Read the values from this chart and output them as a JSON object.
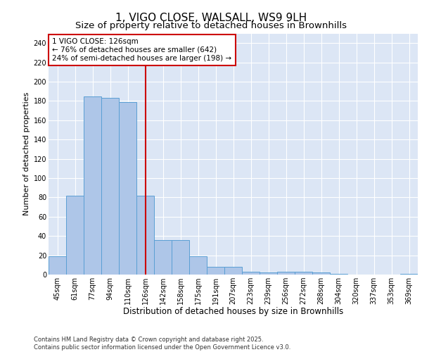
{
  "title": "1, VIGO CLOSE, WALSALL, WS9 9LH",
  "subtitle": "Size of property relative to detached houses in Brownhills",
  "xlabel": "Distribution of detached houses by size in Brownhills",
  "ylabel": "Number of detached properties",
  "categories": [
    "45sqm",
    "61sqm",
    "77sqm",
    "94sqm",
    "110sqm",
    "126sqm",
    "142sqm",
    "158sqm",
    "175sqm",
    "191sqm",
    "207sqm",
    "223sqm",
    "239sqm",
    "256sqm",
    "272sqm",
    "288sqm",
    "304sqm",
    "320sqm",
    "337sqm",
    "353sqm",
    "369sqm"
  ],
  "values": [
    19,
    82,
    185,
    183,
    179,
    82,
    36,
    36,
    19,
    8,
    8,
    3,
    2,
    3,
    3,
    2,
    1,
    0,
    0,
    0,
    1
  ],
  "bar_color": "#aec6e8",
  "bar_edge_color": "#5a9fd4",
  "vline_index": 5,
  "annotation_text": "1 VIGO CLOSE: 126sqm\n← 76% of detached houses are smaller (642)\n24% of semi-detached houses are larger (198) →",
  "vline_color": "#cc0000",
  "annotation_edge_color": "#cc0000",
  "annotation_bg": "#ffffff",
  "ylim": [
    0,
    250
  ],
  "yticks": [
    0,
    20,
    40,
    60,
    80,
    100,
    120,
    140,
    160,
    180,
    200,
    220,
    240
  ],
  "background_color": "#dce6f5",
  "grid_color": "#ffffff",
  "footer": "Contains HM Land Registry data © Crown copyright and database right 2025.\nContains public sector information licensed under the Open Government Licence v3.0.",
  "title_fontsize": 11,
  "subtitle_fontsize": 9.5,
  "xlabel_fontsize": 8.5,
  "ylabel_fontsize": 8,
  "tick_fontsize": 7,
  "annot_fontsize": 7.5,
  "footer_fontsize": 6
}
